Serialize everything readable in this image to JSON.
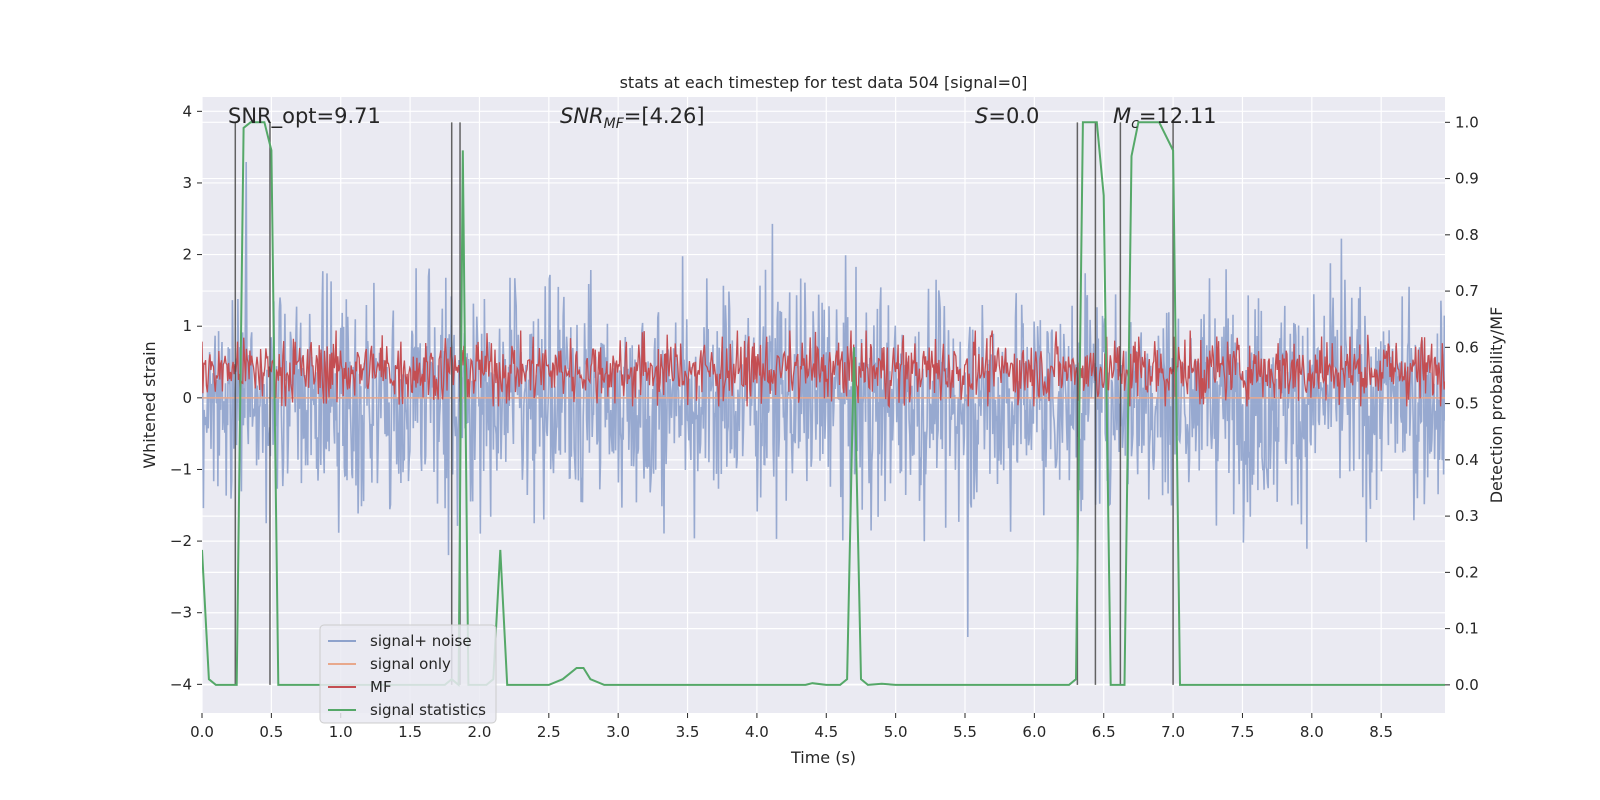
{
  "chart_data": {
    "type": "line",
    "title": "stats at each timestep for test data 504 [signal=0]",
    "xlabel": "Time (s)",
    "ylabel": "Whitened strain",
    "y2label": "Detection probability/MF",
    "xlim": [
      0,
      8.96
    ],
    "ylim": [
      -4.4,
      4.2
    ],
    "y2lim": [
      -0.05,
      1.045
    ],
    "xticks": [
      0.0,
      0.5,
      1.0,
      1.5,
      2.0,
      2.5,
      3.0,
      3.5,
      4.0,
      4.5,
      5.0,
      5.5,
      6.0,
      6.5,
      7.0,
      7.5,
      8.0,
      8.5
    ],
    "xtick_labels": [
      "0.0",
      "0.5",
      "1.0",
      "1.5",
      "2.0",
      "2.5",
      "3.0",
      "3.5",
      "4.0",
      "4.5",
      "5.0",
      "5.5",
      "6.0",
      "6.5",
      "7.0",
      "7.5",
      "8.0",
      "8.5"
    ],
    "yticks": [
      4,
      3,
      2,
      1,
      0,
      -1,
      -2,
      -3,
      -4
    ],
    "ytick_labels": [
      "4",
      "3",
      "2",
      "1",
      "0",
      "−1",
      "−2",
      "−3",
      "−4"
    ],
    "y2ticks": [
      1.0,
      0.9,
      0.8,
      0.7,
      0.6,
      0.5,
      0.4,
      0.3,
      0.2,
      0.1,
      0.0
    ],
    "y2tick_labels": [
      "1.0",
      "0.9",
      "0.8",
      "0.7",
      "0.6",
      "0.5",
      "0.4",
      "0.3",
      "0.2",
      "0.1",
      "0.0"
    ],
    "grid": true,
    "legend_position": "lower-left",
    "annotations": [
      {
        "text": "SNR_opt=9.71"
      },
      {
        "text": "SNR",
        "sub": "MF",
        "suffix": "=[4.26]"
      },
      {
        "text": "S",
        "suffix": "=0.0"
      },
      {
        "text": "M",
        "sub": "c",
        "suffix": "=12.11"
      }
    ],
    "series": [
      {
        "name": "signal+ noise",
        "color": "#8ea2cc",
        "kind": "noise",
        "y_range": [
          -3.8,
          3.8
        ]
      },
      {
        "name": "signal only",
        "color": "#e8a88c",
        "kind": "flat",
        "y_value": 0.0
      },
      {
        "name": "MF",
        "color": "#c44e52",
        "kind": "noise",
        "y2_range": [
          0.5,
          0.62
        ]
      },
      {
        "name": "signal statistics",
        "color": "#55a868",
        "axis": "y2",
        "x": [
          0.0,
          0.05,
          0.1,
          0.15,
          0.2,
          0.25,
          0.3,
          0.35,
          0.4,
          0.45,
          0.5,
          0.55,
          0.6,
          0.8,
          1.0,
          1.2,
          1.4,
          1.6,
          1.75,
          1.8,
          1.85,
          1.88,
          1.92,
          1.95,
          2.0,
          2.05,
          2.1,
          2.15,
          2.2,
          2.25,
          2.35,
          2.5,
          2.6,
          2.7,
          2.75,
          2.8,
          2.9,
          3.0,
          3.5,
          4.0,
          4.35,
          4.4,
          4.5,
          4.6,
          4.65,
          4.7,
          4.75,
          4.8,
          4.9,
          5.0,
          5.1,
          5.5,
          6.0,
          6.25,
          6.3,
          6.35,
          6.4,
          6.45,
          6.5,
          6.55,
          6.6,
          6.65,
          6.7,
          6.75,
          6.8,
          6.9,
          7.0,
          7.05,
          7.1,
          7.5,
          8.0,
          8.5,
          8.96
        ],
        "y": [
          0.24,
          0.01,
          0.0,
          0.0,
          0.0,
          0.0,
          0.99,
          1.0,
          1.0,
          1.0,
          0.95,
          0.0,
          0.0,
          0.0,
          0.0,
          0.0,
          0.0,
          0.0,
          0.0,
          0.01,
          0.0,
          0.95,
          0.0,
          0.0,
          0.0,
          0.0,
          0.01,
          0.24,
          0.0,
          0.0,
          0.0,
          0.0,
          0.01,
          0.03,
          0.03,
          0.01,
          0.0,
          0.0,
          0.0,
          0.0,
          0.0,
          0.003,
          0.0,
          0.0,
          0.01,
          0.6,
          0.01,
          0.0,
          0.002,
          0.0,
          0.0,
          0.0,
          0.0,
          0.0,
          0.01,
          1.0,
          1.0,
          1.0,
          0.87,
          0.0,
          0.0,
          0.0,
          0.94,
          1.0,
          1.0,
          1.0,
          0.95,
          0.0,
          0.0,
          0.0,
          0.0,
          0.0,
          0.0
        ]
      }
    ],
    "vlines": [
      0.24,
      0.49,
      1.8,
      1.86,
      6.31,
      6.44,
      6.62,
      7.0
    ]
  }
}
